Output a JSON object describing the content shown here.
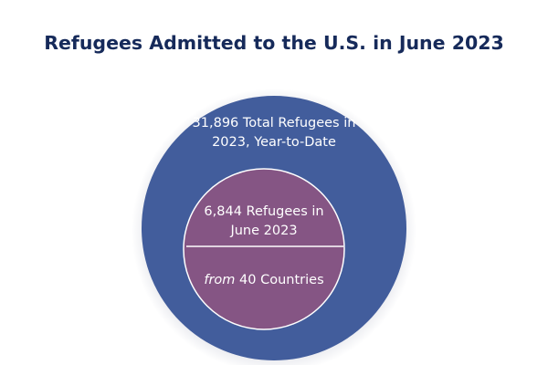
{
  "chart_data": {
    "type": "nested-circle",
    "title": "Refugees Admitted to the U.S. in June 2023",
    "outer": {
      "value": 31896,
      "label_lines": [
        "31,896 Total Refugees in",
        "2023, Year-to-Date"
      ],
      "color": "#425d9c"
    },
    "inner": {
      "value": 6844,
      "label_lines": [
        "6,844 Refugees in",
        "June 2023"
      ],
      "sub_label_emphasis": "from",
      "sub_label_rest": " 40 Countries",
      "countries": 40,
      "color": "#855584"
    }
  }
}
